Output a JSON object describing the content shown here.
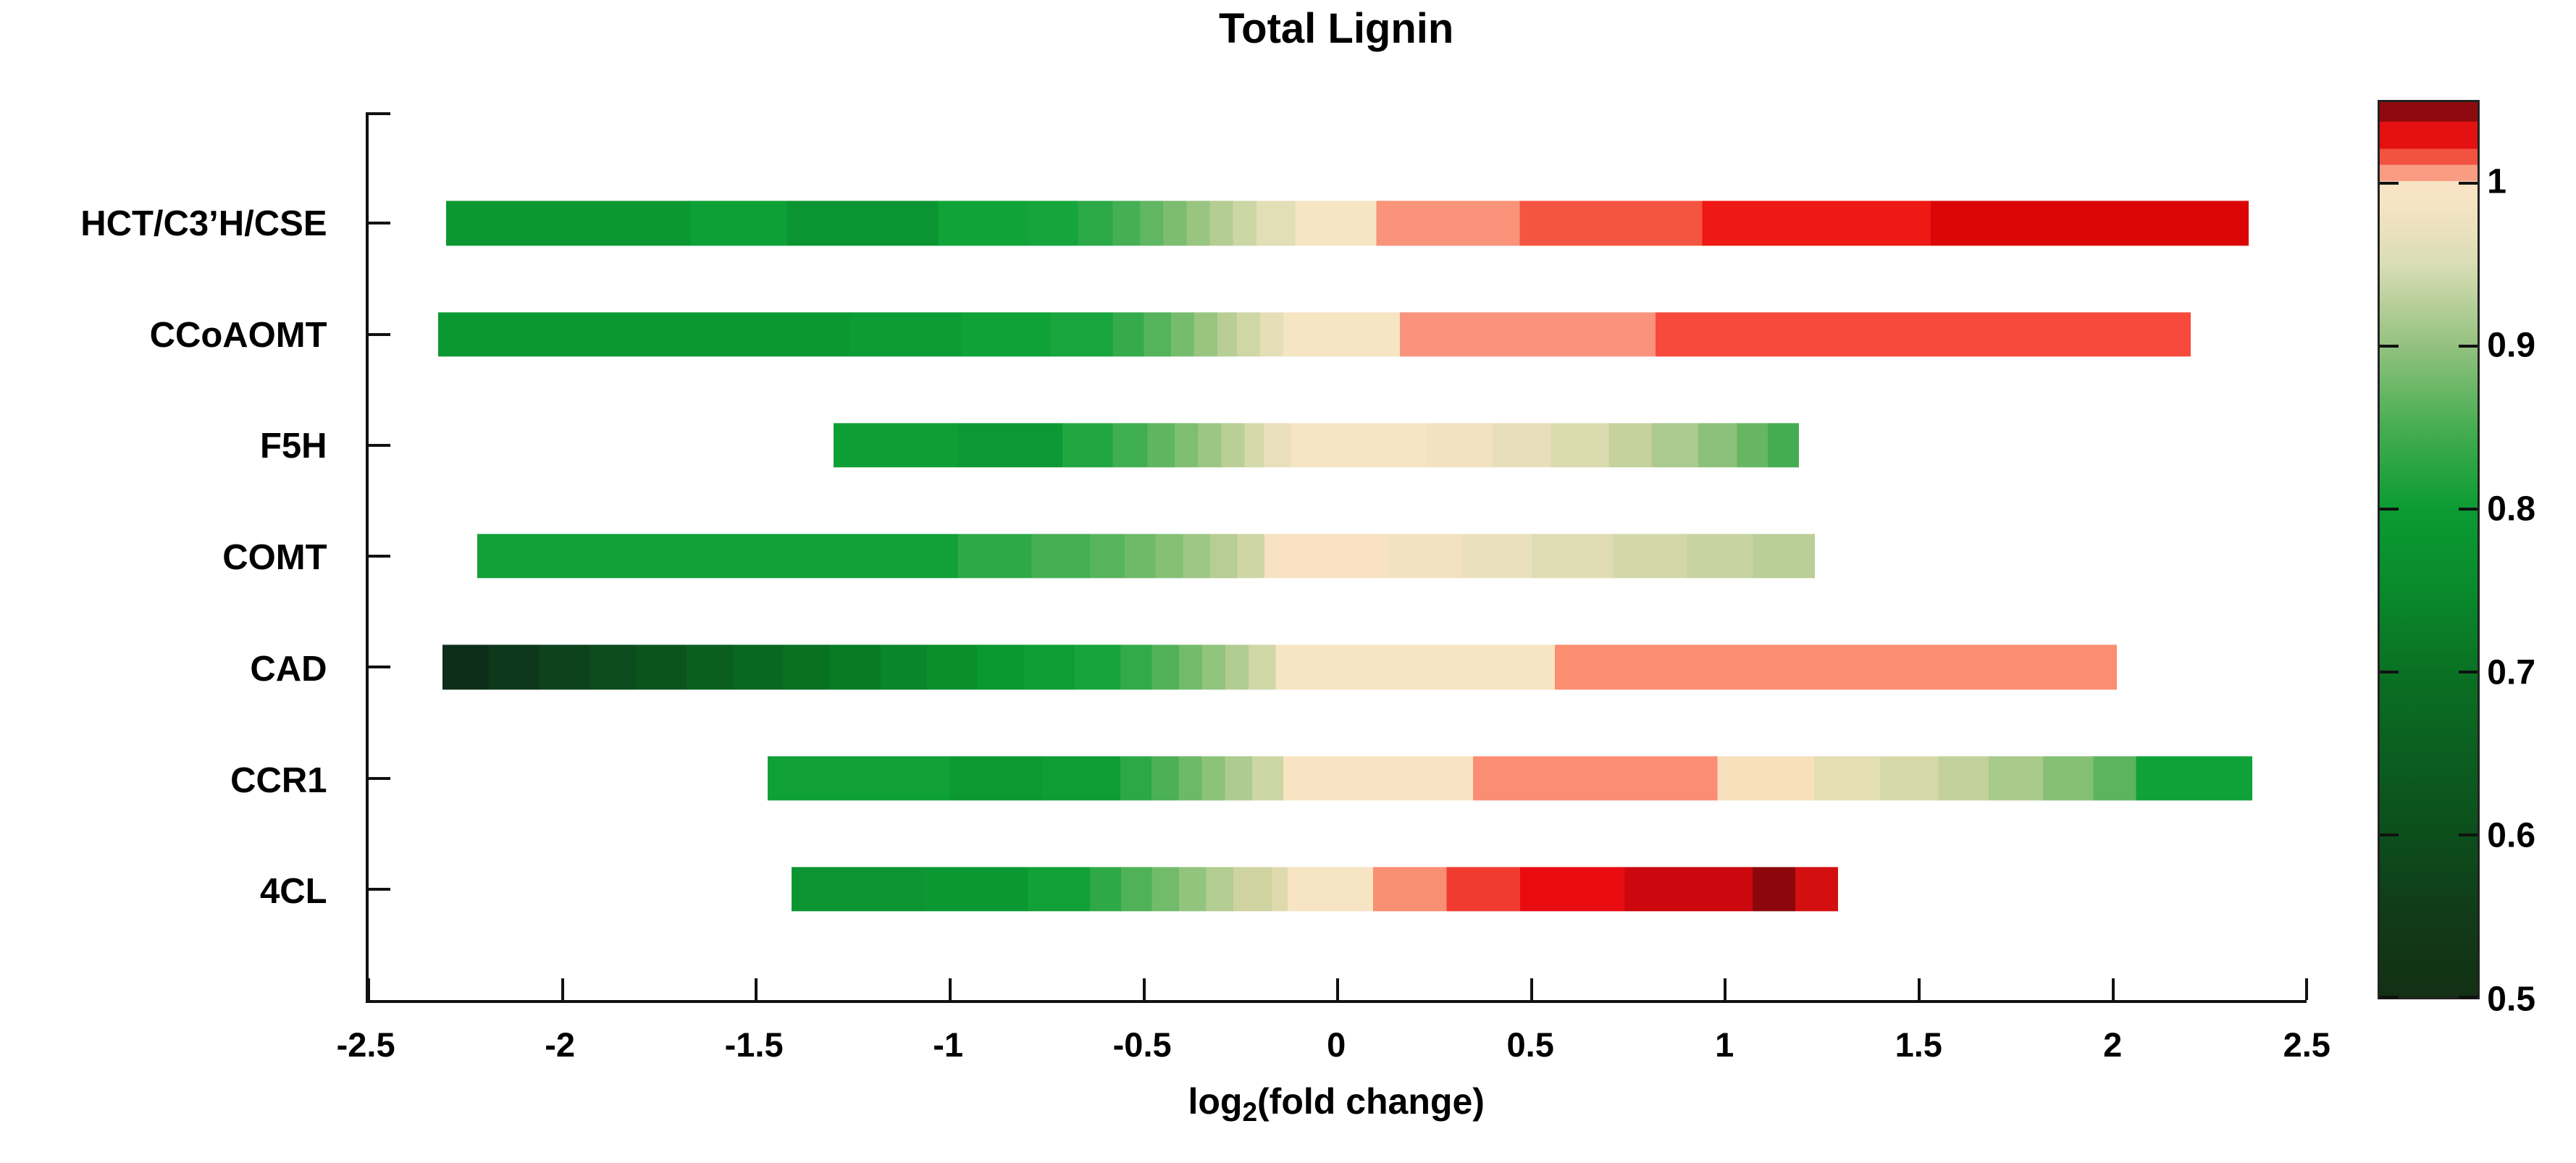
{
  "chart_data": {
    "type": "heatmap",
    "title": "Total Lignin",
    "xlabel_parts": {
      "base": "log",
      "sub": "2",
      "rest": "(fold change)"
    },
    "xlim": [
      -2.5,
      2.5
    ],
    "x_ticks": [
      -2.5,
      -2,
      -1.5,
      -1,
      -0.5,
      0,
      0.5,
      1,
      1.5,
      2,
      2.5
    ],
    "grid": false,
    "legend": "colorbar-right",
    "rows": [
      {
        "label": "HCT/C3’H/CSE",
        "range": [
          -2.3,
          2.35
        ],
        "segments": [
          [
            -2.3,
            -1.67,
            "#0B9833"
          ],
          [
            -1.67,
            -1.42,
            "#0CA036"
          ],
          [
            -1.42,
            -1.03,
            "#0A9432"
          ],
          [
            -1.03,
            -0.8,
            "#10A338"
          ],
          [
            -0.8,
            -0.67,
            "#16A53D"
          ],
          [
            -0.67,
            -0.58,
            "#2BA947"
          ],
          [
            -0.58,
            -0.51,
            "#45AF54"
          ],
          [
            -0.51,
            -0.45,
            "#60B662"
          ],
          [
            -0.45,
            -0.39,
            "#7CBD70"
          ],
          [
            -0.39,
            -0.33,
            "#98C580"
          ],
          [
            -0.33,
            -0.27,
            "#B4CD93"
          ],
          [
            -0.27,
            -0.21,
            "#CDD6A5"
          ],
          [
            -0.21,
            -0.11,
            "#E2DEB6"
          ],
          [
            -0.11,
            0.1,
            "#F6E5C3"
          ],
          [
            0.1,
            0.47,
            "#F99379"
          ],
          [
            0.47,
            0.94,
            "#F45540"
          ],
          [
            0.94,
            1.53,
            "#EE1814"
          ],
          [
            1.53,
            2.35,
            "#DB0406"
          ]
        ]
      },
      {
        "label": "CCoAOMT",
        "range": [
          -2.32,
          2.2
        ],
        "segments": [
          [
            -2.32,
            -1.26,
            "#0B9833"
          ],
          [
            -1.26,
            -0.97,
            "#0C9C35"
          ],
          [
            -0.97,
            -0.74,
            "#0FA237"
          ],
          [
            -0.74,
            -0.58,
            "#18A53E"
          ],
          [
            -0.58,
            -0.5,
            "#35AB4C"
          ],
          [
            -0.5,
            -0.43,
            "#55B35C"
          ],
          [
            -0.43,
            -0.37,
            "#77BC6E"
          ],
          [
            -0.37,
            -0.31,
            "#99C581"
          ],
          [
            -0.31,
            -0.26,
            "#B8CE95"
          ],
          [
            -0.26,
            -0.2,
            "#D0D7A7"
          ],
          [
            -0.2,
            -0.14,
            "#E5DFB8"
          ],
          [
            -0.14,
            0.16,
            "#F6E5C3"
          ],
          [
            0.16,
            0.82,
            "#F9937B"
          ],
          [
            0.82,
            2.2,
            "#F74A3C"
          ]
        ]
      },
      {
        "label": "F5H",
        "range": [
          -1.3,
          1.19
        ],
        "segments": [
          [
            -1.3,
            -0.98,
            "#0E9E36"
          ],
          [
            -0.98,
            -0.71,
            "#0C9834"
          ],
          [
            -0.71,
            -0.58,
            "#22A642"
          ],
          [
            -0.58,
            -0.49,
            "#40AE52"
          ],
          [
            -0.49,
            -0.42,
            "#5FB561"
          ],
          [
            -0.42,
            -0.36,
            "#7EBE72"
          ],
          [
            -0.36,
            -0.3,
            "#9CC684"
          ],
          [
            -0.3,
            -0.24,
            "#BACF96"
          ],
          [
            -0.24,
            -0.19,
            "#D5D9AB"
          ],
          [
            -0.19,
            -0.12,
            "#EADFBC"
          ],
          [
            -0.12,
            0.23,
            "#F7E4C4"
          ],
          [
            0.23,
            0.4,
            "#F2E2C0"
          ],
          [
            0.4,
            0.55,
            "#E8DFBA"
          ],
          [
            0.55,
            0.7,
            "#DADBAF"
          ],
          [
            0.7,
            0.81,
            "#C6D29E"
          ],
          [
            0.81,
            0.93,
            "#ABCA8D"
          ],
          [
            0.93,
            1.03,
            "#8BC07A"
          ],
          [
            1.03,
            1.11,
            "#66B664"
          ],
          [
            1.11,
            1.19,
            "#42AD51"
          ]
        ]
      },
      {
        "label": "COMT",
        "range": [
          -2.22,
          1.23
        ],
        "segments": [
          [
            -2.22,
            -0.98,
            "#12A138"
          ],
          [
            -0.98,
            -0.79,
            "#2FA948"
          ],
          [
            -0.79,
            -0.64,
            "#44AE53"
          ],
          [
            -0.64,
            -0.55,
            "#58B45E"
          ],
          [
            -0.55,
            -0.47,
            "#6FBA69"
          ],
          [
            -0.47,
            -0.4,
            "#86C076"
          ],
          [
            -0.4,
            -0.33,
            "#9EC785"
          ],
          [
            -0.33,
            -0.26,
            "#B6CE94"
          ],
          [
            -0.26,
            -0.19,
            "#CED6A6"
          ],
          [
            -0.19,
            0.13,
            "#F8E2C2"
          ],
          [
            0.13,
            0.32,
            "#F2E2BF"
          ],
          [
            0.32,
            0.5,
            "#EAE0BB"
          ],
          [
            0.5,
            0.71,
            "#DFDCB3"
          ],
          [
            0.71,
            0.9,
            "#D3D8AA"
          ],
          [
            0.9,
            1.07,
            "#C7D4A1"
          ],
          [
            1.07,
            1.23,
            "#BACE97"
          ]
        ]
      },
      {
        "label": "CAD",
        "range": [
          -2.31,
          2.01
        ],
        "segments": [
          [
            -2.31,
            -2.19,
            "#0D2F19"
          ],
          [
            -2.19,
            -2.06,
            "#0E381B"
          ],
          [
            -2.06,
            -1.93,
            "#0D421C"
          ],
          [
            -1.93,
            -1.81,
            "#0C4B1C"
          ],
          [
            -1.81,
            -1.68,
            "#0B551D"
          ],
          [
            -1.68,
            -1.56,
            "#0A5F1F"
          ],
          [
            -1.56,
            -1.43,
            "#096820"
          ],
          [
            -1.43,
            -1.31,
            "#087222"
          ],
          [
            -1.31,
            -1.18,
            "#077C25"
          ],
          [
            -1.18,
            -1.06,
            "#088629"
          ],
          [
            -1.06,
            -0.93,
            "#09902D"
          ],
          [
            -0.93,
            -0.81,
            "#0A9831"
          ],
          [
            -0.81,
            -0.68,
            "#0C9D35"
          ],
          [
            -0.68,
            -0.56,
            "#17A43D"
          ],
          [
            -0.56,
            -0.48,
            "#33AA4A"
          ],
          [
            -0.48,
            -0.41,
            "#52B25A"
          ],
          [
            -0.41,
            -0.35,
            "#73BB6C"
          ],
          [
            -0.35,
            -0.29,
            "#92C47E"
          ],
          [
            -0.29,
            -0.23,
            "#B1CC91"
          ],
          [
            -0.23,
            -0.16,
            "#CFD7A7"
          ],
          [
            -0.16,
            0.56,
            "#F7E4C3"
          ],
          [
            0.56,
            2.01,
            "#FB8D70"
          ]
        ]
      },
      {
        "label": "CCR1",
        "range": [
          -1.47,
          2.36
        ],
        "segments": [
          [
            -1.47,
            -1.0,
            "#0FA036"
          ],
          [
            -1.0,
            -0.76,
            "#0C9833"
          ],
          [
            -0.76,
            -0.56,
            "#0E9C35"
          ],
          [
            -0.56,
            -0.48,
            "#2CA846"
          ],
          [
            -0.48,
            -0.41,
            "#4BB056"
          ],
          [
            -0.41,
            -0.35,
            "#6CB967"
          ],
          [
            -0.35,
            -0.29,
            "#8DC27A"
          ],
          [
            -0.29,
            -0.22,
            "#AECB90"
          ],
          [
            -0.22,
            -0.14,
            "#CDD6A5"
          ],
          [
            -0.14,
            0.35,
            "#F8E4C2"
          ],
          [
            0.35,
            0.98,
            "#FB8D75"
          ],
          [
            0.98,
            1.23,
            "#F7E1BD"
          ],
          [
            1.23,
            1.4,
            "#E4DEB5"
          ],
          [
            1.4,
            1.55,
            "#D5D9AA"
          ],
          [
            1.55,
            1.68,
            "#C3D19C"
          ],
          [
            1.68,
            1.82,
            "#A8CA8B"
          ],
          [
            1.82,
            1.95,
            "#86BF76"
          ],
          [
            1.95,
            2.06,
            "#5DB45F"
          ],
          [
            2.06,
            2.36,
            "#0FA238"
          ]
        ]
      },
      {
        "label": "4CL",
        "range": [
          -1.41,
          1.29
        ],
        "segments": [
          [
            -1.41,
            -1.07,
            "#0C9432"
          ],
          [
            -1.07,
            -0.8,
            "#0B9833"
          ],
          [
            -0.8,
            -0.64,
            "#12A039"
          ],
          [
            -0.64,
            -0.56,
            "#2FA947"
          ],
          [
            -0.56,
            -0.48,
            "#4FB158"
          ],
          [
            -0.48,
            -0.41,
            "#71BB6B"
          ],
          [
            -0.41,
            -0.34,
            "#93C47E"
          ],
          [
            -0.34,
            -0.27,
            "#B3CD92"
          ],
          [
            -0.27,
            -0.17,
            "#CFD3A0"
          ],
          [
            -0.17,
            -0.13,
            "#DFD9AE"
          ],
          [
            -0.13,
            0.09,
            "#F6E4C2"
          ],
          [
            0.09,
            0.28,
            "#FA8F73"
          ],
          [
            0.28,
            0.47,
            "#F03C30"
          ],
          [
            0.47,
            0.74,
            "#E80C10"
          ],
          [
            0.74,
            1.07,
            "#CC070E"
          ],
          [
            1.07,
            1.18,
            "#8C070B"
          ],
          [
            1.18,
            1.29,
            "#D40F10"
          ]
        ]
      }
    ],
    "colorbar": {
      "min": 0.5,
      "max": 1.05,
      "ticks": [
        1,
        0.9,
        0.8,
        0.7,
        0.6,
        0.5
      ],
      "stops": [
        [
          0.0,
          "#8E0A0E"
        ],
        [
          0.022,
          "#8E0A0E"
        ],
        [
          0.022,
          "#E31112"
        ],
        [
          0.052,
          "#E31112"
        ],
        [
          0.052,
          "#F25240"
        ],
        [
          0.07,
          "#F25240"
        ],
        [
          0.07,
          "#F99C82"
        ],
        [
          0.088,
          "#F99C82"
        ],
        [
          0.088,
          "#F9E3C5"
        ],
        [
          0.12,
          "#F4E4C1"
        ],
        [
          0.18,
          "#DADDB5"
        ],
        [
          0.27,
          "#95C281"
        ],
        [
          0.36,
          "#49AE53"
        ],
        [
          0.455,
          "#0B9B33"
        ],
        [
          0.545,
          "#098A2C"
        ],
        [
          0.636,
          "#0A7123"
        ],
        [
          0.727,
          "#0B5F20"
        ],
        [
          0.818,
          "#0C4E1C"
        ],
        [
          0.909,
          "#113B18"
        ],
        [
          1.0,
          "#133015"
        ]
      ]
    },
    "axis_color": "#111111",
    "background": "#ffffff"
  }
}
